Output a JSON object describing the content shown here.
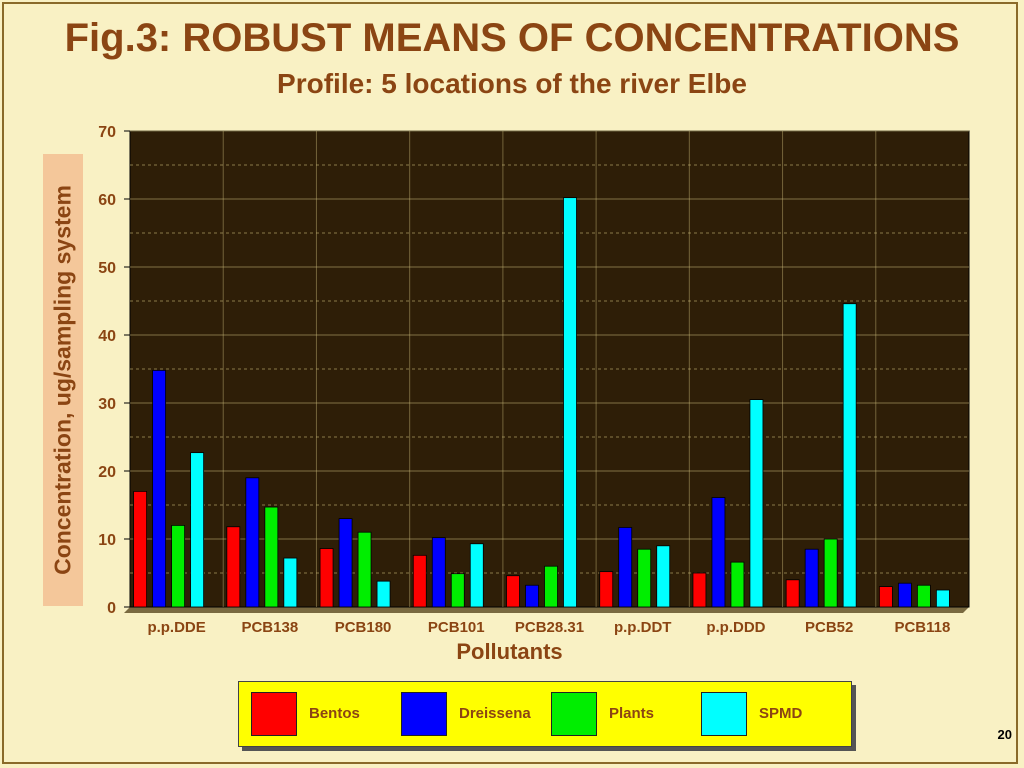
{
  "title": "Fig.3: ROBUST MEANS OF CONCENTRATIONS",
  "subtitle": "Profile: 5 locations of the river Elbe",
  "page_number": "20",
  "chart_data": {
    "type": "bar",
    "title": "Fig.3: ROBUST MEANS OF CONCENTRATIONS",
    "subtitle": "Profile: 5 locations of the river Elbe",
    "xlabel": "Pollutants",
    "ylabel": "Concentration, ug/sampling system",
    "ylim": [
      0,
      70
    ],
    "yticks": [
      0,
      10,
      20,
      30,
      40,
      50,
      60,
      70
    ],
    "grid": true,
    "legend_position": "bottom",
    "categories": [
      "p.p.DDE",
      "PCB138",
      "PCB180",
      "PCB101",
      "PCB28.31",
      "p.p.DDT",
      "p.p.DDD",
      "PCB52",
      "PCB118"
    ],
    "series": [
      {
        "name": "Bentos",
        "color": "#ff0000",
        "values": [
          17,
          11.8,
          8.6,
          7.6,
          4.6,
          5.2,
          5.0,
          4.0,
          3.0
        ]
      },
      {
        "name": "Dreissena",
        "color": "#0000ff",
        "values": [
          34.8,
          19.0,
          13.0,
          10.2,
          3.2,
          11.7,
          16.1,
          8.5,
          3.5
        ]
      },
      {
        "name": "Plants",
        "color": "#00ee00",
        "values": [
          12.0,
          14.7,
          11.0,
          4.9,
          6.0,
          8.5,
          6.6,
          10.0,
          3.2
        ]
      },
      {
        "name": "SPMD",
        "color": "#00ffff",
        "values": [
          22.7,
          7.2,
          3.8,
          9.3,
          60.2,
          9.0,
          30.5,
          44.6,
          2.5
        ]
      }
    ],
    "plot_background": "#2e1e07",
    "gridline_color": "#c8b878"
  }
}
